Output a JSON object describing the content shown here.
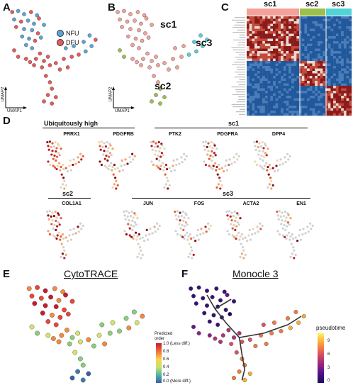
{
  "panels": {
    "A": {
      "letter": "A",
      "legend": [
        "NFU",
        "DFU"
      ],
      "colors": {
        "NFU": "#5aa6d8",
        "DFU": "#e85a5a"
      },
      "axis_x": "UMAP1",
      "axis_y": "UMAP2"
    },
    "B": {
      "letter": "B",
      "clusters": [
        "sc1",
        "sc2",
        "sc3"
      ],
      "colors": {
        "sc1": "#f4a19a",
        "sc2": "#9cc04c",
        "sc3": "#53d2d8"
      },
      "axis_x": "UMAP1",
      "axis_y": "UMAP2"
    },
    "C": {
      "letter": "C",
      "headers": [
        "sc1",
        "sc2",
        "sc3"
      ],
      "header_colors": [
        "#f4a19a",
        "#9cc04c",
        "#53d2d8"
      ]
    },
    "D": {
      "letter": "D",
      "group_ubiq": "Ubiquitously high",
      "group_sc1": "sc1",
      "group_sc2": "sc2",
      "group_sc3": "sc3",
      "genes_row1": [
        "PRRX1",
        "PDGFRB",
        "PTK2",
        "PDGFRA",
        "DPP4"
      ],
      "genes_row2": [
        "COL1A1",
        "JUN",
        "FOS",
        "ACTA2",
        "EN1"
      ]
    },
    "E": {
      "letter": "E",
      "title": "CytoTRACE",
      "legend_title": "Predicted order",
      "legend_ticks": [
        "1.0 (Less diff.)",
        "0.8",
        "0.6",
        "0.4",
        "0.2",
        "0.0 (More diff.)"
      ]
    },
    "F": {
      "letter": "F",
      "title": "Monocle 3",
      "legend_title": "pseudotime",
      "legend_ticks": [
        "9",
        "6",
        "3",
        "0"
      ]
    }
  }
}
